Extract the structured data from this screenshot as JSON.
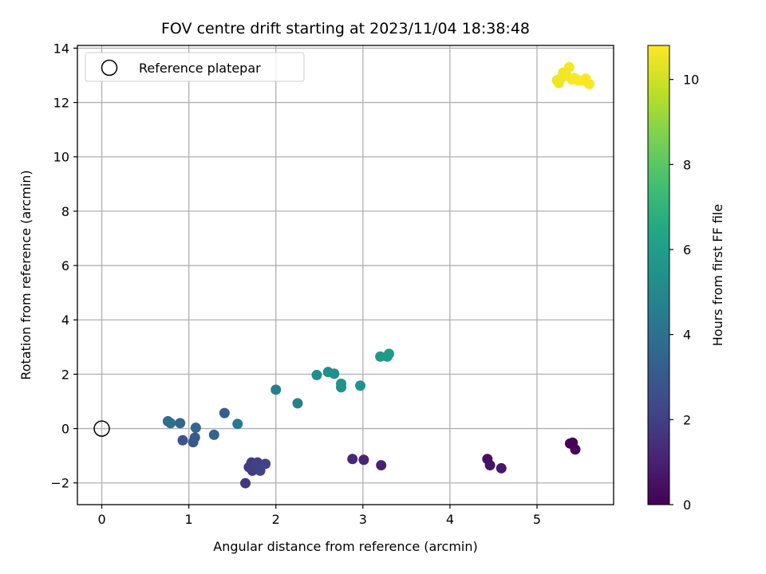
{
  "chart_data": {
    "type": "scatter",
    "title": "FOV centre drift starting at 2023/11/04 18:38:48",
    "xlabel": "Angular distance from reference (arcmin)",
    "ylabel": "Rotation from reference (arcmin)",
    "xlim": [
      -0.28,
      5.88
    ],
    "ylim": [
      -2.8,
      14.1
    ],
    "xticks": [
      0,
      1,
      2,
      3,
      4,
      5
    ],
    "yticks": [
      -2,
      0,
      2,
      4,
      6,
      8,
      10,
      12,
      14
    ],
    "xtick_labels": [
      "0",
      "1",
      "2",
      "3",
      "4",
      "5"
    ],
    "ytick_labels": [
      "−2",
      "0",
      "2",
      "4",
      "6",
      "8",
      "10",
      "12",
      "14"
    ],
    "grid": true,
    "legend": {
      "position": "top-left",
      "entries": [
        "Reference platepar"
      ]
    },
    "reference_point": {
      "x": 0,
      "y": 0
    },
    "colorbar": {
      "label": "Hours from first FF file",
      "range": [
        0,
        10.8
      ],
      "ticks": [
        0,
        2,
        4,
        6,
        8,
        10
      ],
      "tick_labels": [
        "0",
        "2",
        "4",
        "6",
        "8",
        "10"
      ],
      "colormap": "viridis"
    },
    "points": [
      {
        "x": 5.38,
        "y": -0.55,
        "t": 0.05
      },
      {
        "x": 5.41,
        "y": -0.52,
        "t": 0.12
      },
      {
        "x": 5.44,
        "y": -0.77,
        "t": 0.2
      },
      {
        "x": 4.43,
        "y": -1.12,
        "t": 0.5
      },
      {
        "x": 4.46,
        "y": -1.35,
        "t": 0.6
      },
      {
        "x": 4.59,
        "y": -1.46,
        "t": 0.7
      },
      {
        "x": 3.21,
        "y": -1.35,
        "t": 1.0
      },
      {
        "x": 3.01,
        "y": -1.15,
        "t": 1.1
      },
      {
        "x": 2.88,
        "y": -1.12,
        "t": 1.2
      },
      {
        "x": 1.65,
        "y": -2.01,
        "t": 1.7
      },
      {
        "x": 1.69,
        "y": -1.42,
        "t": 1.8
      },
      {
        "x": 1.72,
        "y": -1.25,
        "t": 1.9
      },
      {
        "x": 1.73,
        "y": -1.55,
        "t": 1.95
      },
      {
        "x": 1.76,
        "y": -1.3,
        "t": 2.0
      },
      {
        "x": 1.79,
        "y": -1.25,
        "t": 2.05
      },
      {
        "x": 1.82,
        "y": -1.55,
        "t": 2.1
      },
      {
        "x": 1.88,
        "y": -1.3,
        "t": 2.2
      },
      {
        "x": 0.93,
        "y": -0.43,
        "t": 2.7
      },
      {
        "x": 1.05,
        "y": -0.5,
        "t": 2.9
      },
      {
        "x": 1.07,
        "y": -0.33,
        "t": 3.0
      },
      {
        "x": 1.41,
        "y": 0.57,
        "t": 3.2
      },
      {
        "x": 1.29,
        "y": -0.23,
        "t": 3.5
      },
      {
        "x": 0.9,
        "y": 0.2,
        "t": 3.6
      },
      {
        "x": 1.08,
        "y": 0.03,
        "t": 3.65
      },
      {
        "x": 0.76,
        "y": 0.27,
        "t": 3.8
      },
      {
        "x": 0.79,
        "y": 0.2,
        "t": 3.9
      },
      {
        "x": 1.56,
        "y": 0.17,
        "t": 4.3
      },
      {
        "x": 2.0,
        "y": 1.43,
        "t": 4.6
      },
      {
        "x": 2.25,
        "y": 0.93,
        "t": 4.7
      },
      {
        "x": 2.47,
        "y": 1.97,
        "t": 5.2
      },
      {
        "x": 2.6,
        "y": 2.08,
        "t": 5.3
      },
      {
        "x": 2.67,
        "y": 2.02,
        "t": 5.35
      },
      {
        "x": 2.75,
        "y": 1.52,
        "t": 5.4
      },
      {
        "x": 2.75,
        "y": 1.65,
        "t": 5.45
      },
      {
        "x": 2.97,
        "y": 1.58,
        "t": 5.5
      },
      {
        "x": 3.2,
        "y": 2.65,
        "t": 5.7
      },
      {
        "x": 3.28,
        "y": 2.65,
        "t": 5.8
      },
      {
        "x": 3.3,
        "y": 2.75,
        "t": 5.85
      },
      {
        "x": 5.23,
        "y": 12.82,
        "t": 10.5
      },
      {
        "x": 5.25,
        "y": 12.72,
        "t": 10.55
      },
      {
        "x": 5.28,
        "y": 12.9,
        "t": 10.6
      },
      {
        "x": 5.3,
        "y": 13.1,
        "t": 10.6
      },
      {
        "x": 5.34,
        "y": 12.98,
        "t": 10.65
      },
      {
        "x": 5.37,
        "y": 13.3,
        "t": 10.7
      },
      {
        "x": 5.4,
        "y": 12.85,
        "t": 10.7
      },
      {
        "x": 5.43,
        "y": 12.9,
        "t": 10.75
      },
      {
        "x": 5.47,
        "y": 12.82,
        "t": 10.75
      },
      {
        "x": 5.52,
        "y": 12.8,
        "t": 10.78
      },
      {
        "x": 5.56,
        "y": 12.88,
        "t": 10.8
      },
      {
        "x": 5.6,
        "y": 12.68,
        "t": 10.8
      }
    ]
  }
}
